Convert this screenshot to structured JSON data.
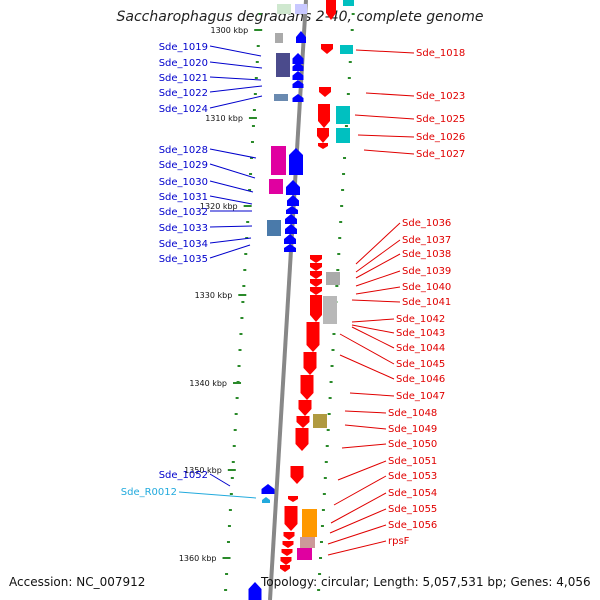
{
  "title": "Saccharophagus degradans 2-40, complete genome",
  "accession": "Accession: NC_007912",
  "summary": "Topology: circular; Length: 5,057,531 bp; Genes: 4,056",
  "colors": {
    "backbone": "#888888",
    "forward_label": "#0000cc",
    "reverse_label": "#e00000",
    "rna_label": "#22aadd",
    "scale": "#2a8a2a"
  },
  "scale_ticks": [
    "1300 kbp",
    "1310 kbp",
    "1320 kbp",
    "1330 kbp",
    "1340 kbp",
    "1350 kbp",
    "1360 kbp"
  ],
  "left_genes": [
    "Sde_1019",
    "Sde_1020",
    "Sde_1021",
    "Sde_1022",
    "Sde_1024",
    "Sde_1028",
    "Sde_1029",
    "Sde_1030",
    "Sde_1031",
    "Sde_1032",
    "Sde_1033",
    "Sde_1034",
    "Sde_1035",
    "Sde_1052"
  ],
  "rna_genes": [
    "Sde_R0012"
  ],
  "right_genes": [
    "Sde_1018",
    "Sde_1023",
    "Sde_1025",
    "Sde_1026",
    "Sde_1027",
    "Sde_1036",
    "Sde_1037",
    "Sde_1038",
    "Sde_1039",
    "Sde_1040",
    "Sde_1041",
    "Sde_1042",
    "Sde_1043",
    "Sde_1044",
    "Sde_1045",
    "Sde_1046",
    "Sde_1047",
    "Sde_1048",
    "Sde_1049",
    "Sde_1050",
    "Sde_1051",
    "Sde_1053",
    "Sde_1054",
    "Sde_1055",
    "Sde_1056",
    "rpsF"
  ]
}
